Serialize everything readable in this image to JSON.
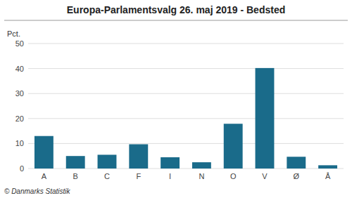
{
  "chart_data": {
    "type": "bar",
    "title": "Europa-Parlamentsvalg 26. maj 2019 - Bedsted",
    "categories": [
      "A",
      "B",
      "C",
      "F",
      "I",
      "N",
      "O",
      "V",
      "Ø",
      "Å"
    ],
    "values": [
      13.0,
      5.0,
      5.5,
      9.7,
      4.5,
      2.5,
      17.9,
      40.2,
      4.7,
      1.3
    ],
    "color": "#1a6b8a",
    "ylim": [
      0,
      50
    ],
    "yticks": [
      0,
      10,
      20,
      30,
      40,
      50
    ],
    "ylabel": "Pct.",
    "footer": "© Danmarks Statistik",
    "grid": true
  }
}
